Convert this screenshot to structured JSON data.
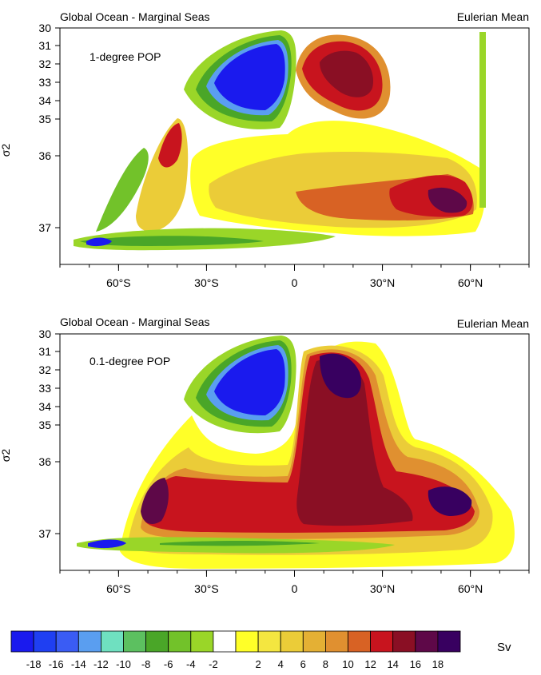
{
  "chart_data": [
    {
      "type": "heatmap",
      "title_left": "Global Ocean - Marginal Seas",
      "title_right": "Eulerian Mean",
      "label": "1-degree POP",
      "ylabel": "σ2",
      "xlabel": "",
      "x_ticks": [
        "60°S",
        "30°S",
        "0",
        "30°N",
        "60°N"
      ],
      "x_tick_values": [
        -60,
        -30,
        0,
        30,
        60
      ],
      "xlim": [
        -80,
        80
      ],
      "y_ticks": [
        "30",
        "31",
        "32",
        "33",
        "34",
        "35",
        "36",
        "37"
      ],
      "y_tick_values": [
        30,
        31,
        32,
        33,
        34,
        35,
        36,
        37
      ],
      "ylim": [
        30,
        37.7
      ],
      "y_scale": "stretched (expanded in light density range)",
      "units": "Sv",
      "features": [
        {
          "name": "upper cell (negative)",
          "lat": [
            -30,
            0
          ],
          "sigma2": [
            30,
            34.8
          ],
          "min_value": -18
        },
        {
          "name": "northern cell (positive)",
          "lat": [
            2,
            38
          ],
          "sigma2": [
            30.8,
            34.5
          ],
          "max_value": 16
        },
        {
          "name": "northern deep cell (positive)",
          "lat": [
            0,
            65
          ],
          "sigma2": [
            35.2,
            37.3
          ],
          "max_value": 18
        },
        {
          "name": "southern bottom cell (negative)",
          "lat": [
            -75,
            -5
          ],
          "sigma2": [
            37,
            37.5
          ],
          "min_value": -18
        },
        {
          "name": "southern intermediate cell (positive)",
          "lat": [
            -55,
            -40
          ],
          "sigma2": [
            34.9,
            37
          ],
          "max_value": 14
        }
      ]
    },
    {
      "type": "heatmap",
      "title_left": "Global Ocean - Marginal Seas",
      "title_right": "Eulerian Mean",
      "label": "0.1-degree POP",
      "ylabel": "σ2",
      "xlabel": "",
      "x_ticks": [
        "60°S",
        "30°S",
        "0",
        "30°N",
        "60°N"
      ],
      "x_tick_values": [
        -60,
        -30,
        0,
        30,
        60
      ],
      "xlim": [
        -80,
        80
      ],
      "y_ticks": [
        "30",
        "31",
        "32",
        "33",
        "34",
        "35",
        "36",
        "37"
      ],
      "y_tick_values": [
        30,
        31,
        32,
        33,
        34,
        35,
        36,
        37
      ],
      "ylim": [
        30,
        37.7
      ],
      "y_scale": "stretched (expanded in light density range)",
      "units": "Sv",
      "features": [
        {
          "name": "upper cell (negative)",
          "lat": [
            -30,
            0
          ],
          "sigma2": [
            30,
            34.8
          ],
          "min_value": -18
        },
        {
          "name": "northern cell (positive)",
          "lat": [
            0,
            38
          ],
          "sigma2": [
            30.4,
            37
          ],
          "max_value": 18
        },
        {
          "name": "deep cell (positive)",
          "lat": [
            -55,
            65
          ],
          "sigma2": [
            35.5,
            37.3
          ],
          "max_value": 18
        },
        {
          "name": "southern bottom cell (negative)",
          "lat": [
            -70,
            35
          ],
          "sigma2": [
            37.2,
            37.6
          ],
          "min_value": -14
        }
      ]
    }
  ],
  "colorbar": {
    "units": "Sv",
    "tick_labels": [
      "-18",
      "-16",
      "-14",
      "-12",
      "-10",
      "-8",
      "-6",
      "-4",
      "-2",
      "2",
      "4",
      "6",
      "8",
      "10",
      "12",
      "14",
      "16",
      "18"
    ],
    "colors": [
      "#1a1aee",
      "#1f3ff2",
      "#3a5cf4",
      "#5a9ef0",
      "#6fe0c0",
      "#5cc060",
      "#4aa628",
      "#72c22a",
      "#9ad628",
      "#ffffff",
      "#ffff28",
      "#f4e640",
      "#ebcc38",
      "#e4b034",
      "#e09030",
      "#d86224",
      "#c8141e",
      "#8a0f24",
      "#5e0848",
      "#380060"
    ]
  },
  "colors": {
    "neg_strong": "#1a1aee",
    "pos_strong": "#380060",
    "background": "#ffffff"
  }
}
